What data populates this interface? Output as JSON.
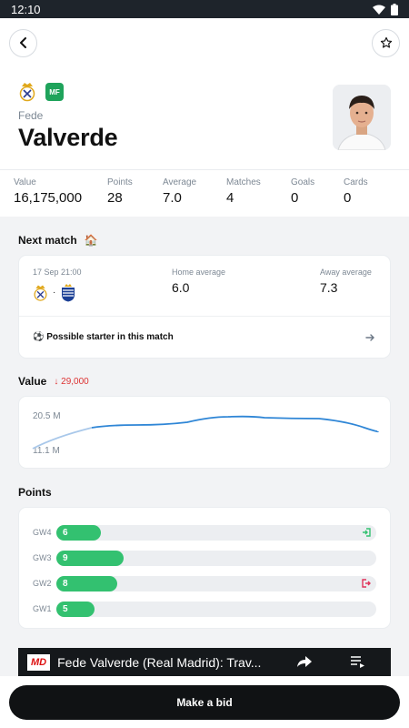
{
  "status_bar": {
    "time": "12:10"
  },
  "player": {
    "position": "MF",
    "first_name": "Fede",
    "last_name": "Valverde"
  },
  "stats": [
    {
      "label": "Value",
      "value": "16,175,000"
    },
    {
      "label": "Points",
      "value": "28"
    },
    {
      "label": "Average",
      "value": "7.0"
    },
    {
      "label": "Matches",
      "value": "4"
    },
    {
      "label": "Goals",
      "value": "0"
    },
    {
      "label": "Cards",
      "value": "0"
    }
  ],
  "next_match": {
    "title": "Next match",
    "title_icon": "🏠",
    "date": "17 Sep 21:00",
    "separator": "·",
    "home_avg_label": "Home average",
    "home_avg": "6.0",
    "away_avg_label": "Away average",
    "away_avg": "7.3",
    "starter_text": "⚽ Possible starter in this match"
  },
  "value_section": {
    "title": "Value",
    "change": "↓ 29,000",
    "axis_max": "20.5 M",
    "axis_min": "11.1 M"
  },
  "points_section": {
    "title": "Points",
    "rows": [
      {
        "gw": "GW4",
        "points": "6",
        "fraction": 0.14,
        "icon": "substitution-in-icon"
      },
      {
        "gw": "GW3",
        "points": "9",
        "fraction": 0.21,
        "icon": ""
      },
      {
        "gw": "GW2",
        "points": "8",
        "fraction": 0.19,
        "icon": "substitution-out-icon"
      },
      {
        "gw": "GW1",
        "points": "5",
        "fraction": 0.12,
        "icon": ""
      }
    ]
  },
  "video": {
    "logo": "MD",
    "title": "Fede Valverde (Real Madrid): Trav..."
  },
  "bid_button": "Make a bid",
  "colors": {
    "accent_green": "#33c170",
    "line_blue": "#2f86d6",
    "down_red": "#d33333"
  }
}
